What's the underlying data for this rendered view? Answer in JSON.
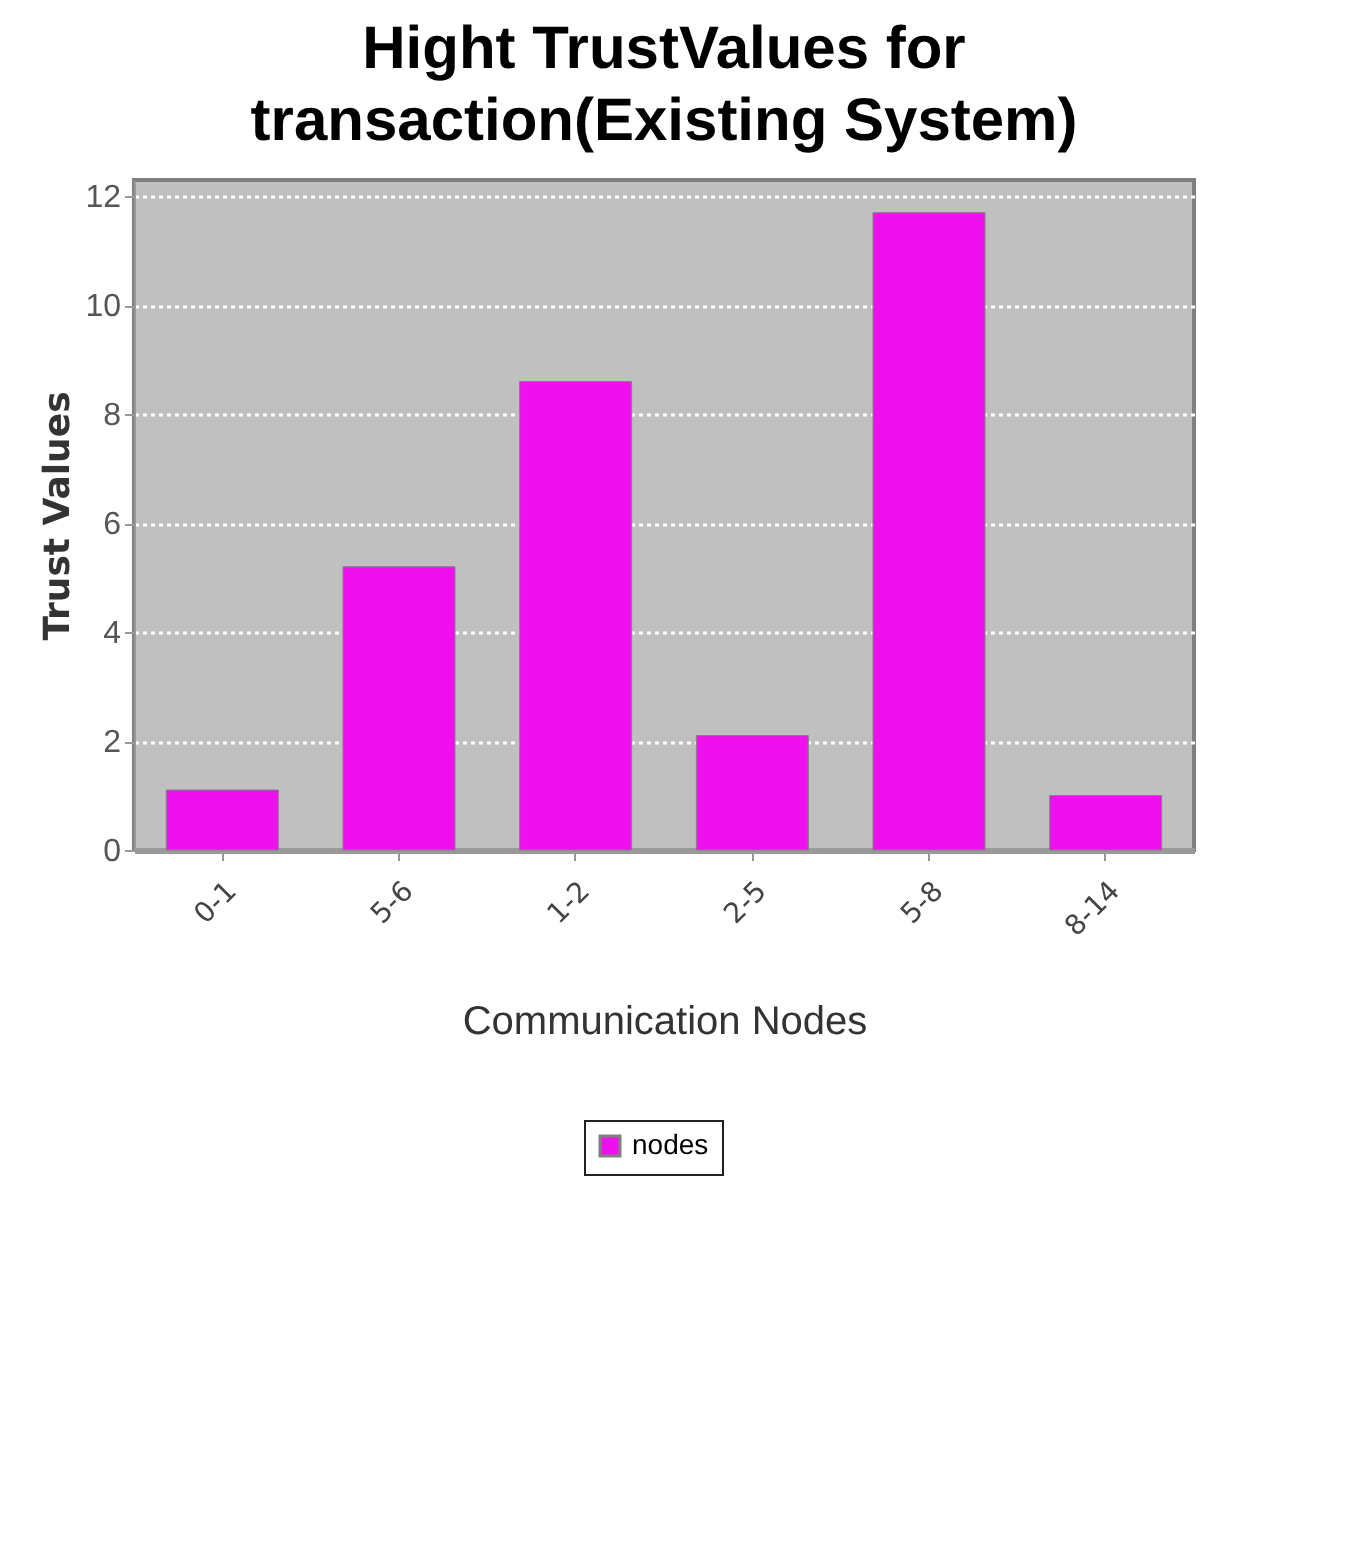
{
  "chart_data": {
    "type": "bar",
    "title": "Hight TrustValues for transaction(Existing System)",
    "xlabel": "Communication Nodes",
    "ylabel": "Trust Values",
    "categories": [
      "0-1",
      "5-6",
      "1-2",
      "2-5",
      "5-8",
      "8-14"
    ],
    "series": [
      {
        "name": "nodes",
        "color": "#ee11ee",
        "values": [
          1.1,
          5.2,
          8.6,
          2.1,
          11.7,
          1.0
        ]
      }
    ],
    "ylim": [
      0,
      12.3
    ],
    "yticks": [
      0,
      2,
      4,
      6,
      8,
      10,
      12
    ],
    "grid": "y",
    "legend": "bottom"
  }
}
